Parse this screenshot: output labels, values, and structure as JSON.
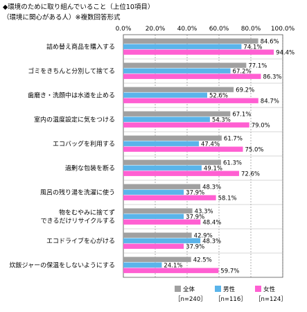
{
  "title_line1": "◆環境のために取り組んでいること（上位10項目）",
  "title_line2": "（環境に関心がある人）※複数回答形式",
  "chart_data": {
    "type": "bar",
    "orientation": "horizontal",
    "xlim": [
      0,
      100
    ],
    "ticks": [
      "0.0%",
      "20.0%",
      "40.0%",
      "60.0%",
      "80.0%",
      "100.0%"
    ],
    "tick_values": [
      0,
      20,
      40,
      60,
      80,
      100
    ],
    "grid": true,
    "legend_position": "bottom-right",
    "categories": [
      "詰め替え商品を購入する",
      "ゴミをきちんと分別して捨てる",
      "歯磨き・洗顔中は水道を止める",
      "室内の温度設定に気をつける",
      "エコバッグを利用する",
      "過剰な包装を断る",
      "風呂の残り湯を洗濯に使う",
      "物をむやみに捨てず\nできるだけリサイクルする",
      "エコドライブを心がける",
      "炊飯ジャーの保温をしないようにする"
    ],
    "series": [
      {
        "name": "全体",
        "n_label": "［n=240］",
        "color": "#a0a0a0",
        "values": [
          84.6,
          77.1,
          69.2,
          67.1,
          61.7,
          61.3,
          48.3,
          43.3,
          42.9,
          42.5
        ],
        "labels": [
          "84.6%",
          "77.1%",
          "69.2%",
          "67.1%",
          "61.7%",
          "61.3%",
          "48.3%",
          "43.3%",
          "42.9%",
          "42.5%"
        ]
      },
      {
        "name": "男性",
        "n_label": "［n=116］",
        "color": "#5ab4ea",
        "values": [
          74.1,
          67.2,
          52.6,
          54.3,
          47.4,
          49.1,
          37.9,
          37.9,
          48.3,
          24.1
        ],
        "labels": [
          "74.1%",
          "67.2%",
          "52.6%",
          "54.3%",
          "47.4%",
          "49.1%",
          "37.9%",
          "37.9%",
          "48.3%",
          "24.1%"
        ]
      },
      {
        "name": "女性",
        "n_label": "［n=124］",
        "color": "#ff5fd2",
        "values": [
          94.4,
          86.3,
          84.7,
          79.0,
          75.0,
          72.6,
          58.1,
          48.4,
          37.9,
          59.7
        ],
        "labels": [
          "94.4%",
          "86.3%",
          "84.7%",
          "79.0%",
          "75.0%",
          "72.6%",
          "58.1%",
          "48.4%",
          "37.9%",
          "59.7%"
        ]
      }
    ]
  }
}
